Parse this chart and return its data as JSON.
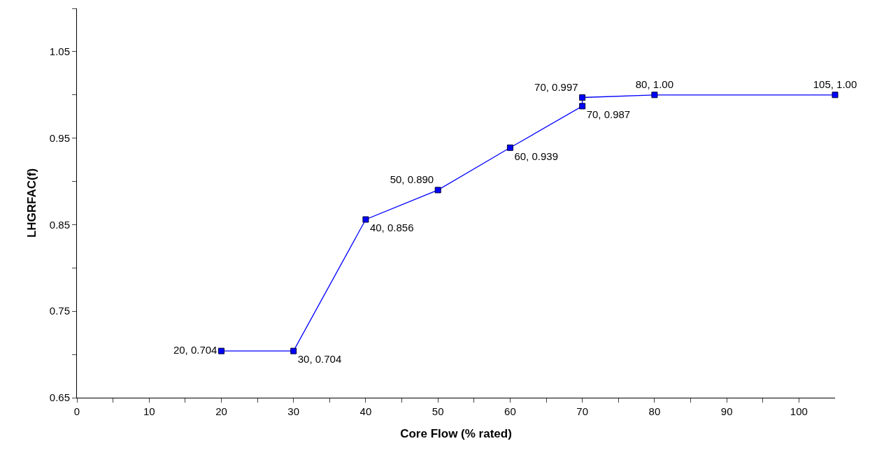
{
  "chart_data": {
    "type": "line",
    "xlabel": "Core Flow (% rated)",
    "ylabel": "LHGRFAC(f)",
    "x": [
      20,
      30,
      40,
      50,
      60,
      70,
      70,
      80,
      105
    ],
    "series": [
      {
        "color": "#0000ff",
        "values": [
          0.704,
          0.704,
          0.856,
          0.89,
          0.939,
          0.987,
          0.997,
          1.0,
          1.0
        ],
        "value_labels": [
          "20, 0.704",
          "30, 0.704",
          "40, 0.856",
          "50, 0.890",
          "60, 0.939",
          "70, 0.987",
          "70, 0.997",
          "80, 1.00",
          "105, 1.00"
        ]
      }
    ],
    "xlim": [
      0,
      105
    ],
    "xticks": [
      0,
      {
        "value": 5,
        "label": null
      },
      10,
      {
        "value": 15,
        "label": null
      },
      20,
      {
        "value": 25,
        "label": null
      },
      30,
      {
        "value": 35,
        "label": null
      },
      40,
      {
        "value": 45,
        "label": null
      },
      50,
      {
        "value": 55,
        "label": null
      },
      60,
      {
        "value": 65,
        "label": null
      },
      70,
      {
        "value": 75,
        "label": null
      },
      80,
      {
        "value": 85,
        "label": null
      },
      90,
      {
        "value": 95,
        "label": null
      },
      100
    ],
    "ylim": [
      0.65,
      1.1
    ],
    "yticks": [
      0.65,
      {
        "value": 0.7,
        "label": null
      },
      0.75,
      {
        "value": 0.8,
        "label": null
      },
      0.85,
      {
        "value": 0.9,
        "label": null
      },
      0.95,
      {
        "value": 1.0,
        "label": null
      },
      1.05,
      {
        "value": 1.1,
        "label": null
      }
    ],
    "grid": false,
    "marker": "square",
    "line_style": "solid"
  }
}
